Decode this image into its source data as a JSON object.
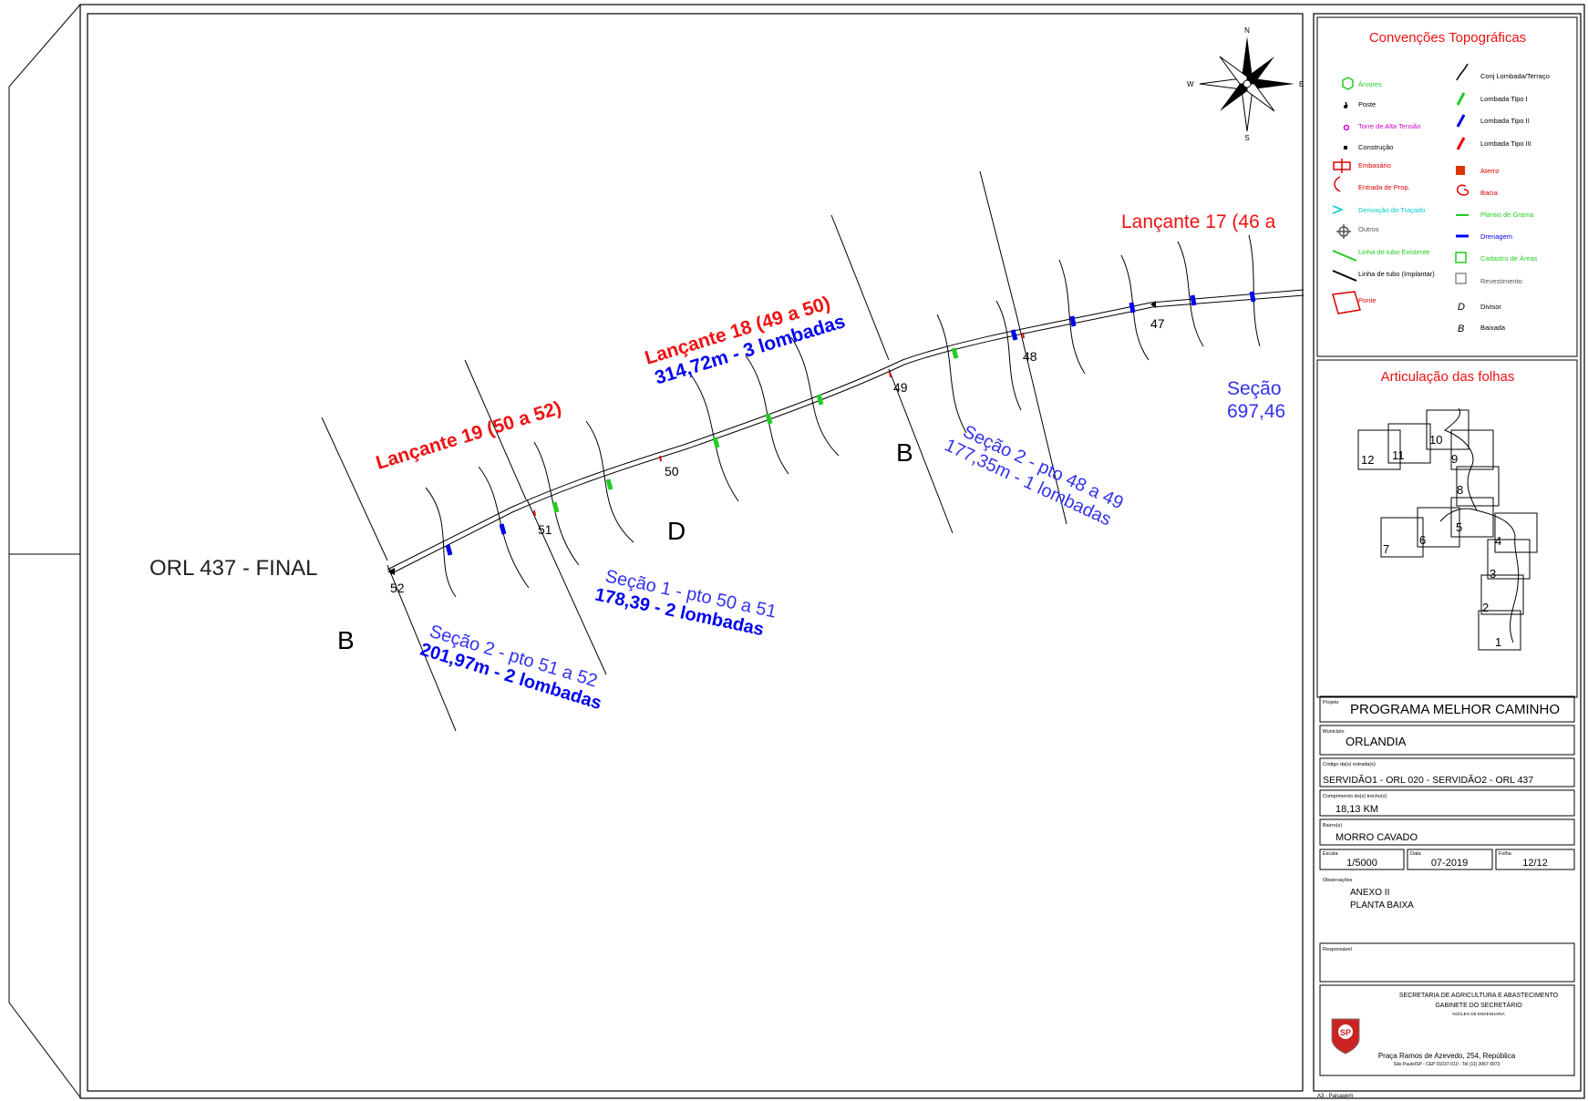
{
  "map": {
    "endpoint_label": "ORL 437 - FINAL",
    "points": [
      "47",
      "48",
      "49",
      "50",
      "51",
      "52"
    ],
    "segments": [
      {
        "title": "Lançante 17 (46 a"
      },
      {
        "title": "Lançante 18 (49 a 50)",
        "detail": "314,72m - 3 lombadas"
      },
      {
        "title": "Lançante 19 (50 a 52)"
      }
    ],
    "sections": [
      {
        "line1": "Seção 2 - pto 48 a 49",
        "line2": "177,35m - 1 lombadas"
      },
      {
        "line1": "Seção 1 - pto 50 a 51",
        "line2": "178,39 - 2 lombadas"
      },
      {
        "line1": "Seção 2 - pto 51 a 52",
        "line2": "201,97m - 2 lombadas"
      },
      {
        "line1": "Seção",
        "line2": "697,46"
      }
    ],
    "markers": {
      "b1": "B",
      "b2": "B",
      "d": "D"
    },
    "compass": {
      "n": "N",
      "s": "S",
      "e": "E",
      "w": "W"
    }
  },
  "legend": {
    "title": "Convenções Topográficas",
    "left": [
      {
        "label": "Árvores",
        "color": "#22cc22"
      },
      {
        "label": "Poste",
        "color": "#000000"
      },
      {
        "label": "Torre de Alta Tensão",
        "color": "#cc00cc"
      },
      {
        "label": "Construção",
        "color": "#000000"
      },
      {
        "label": "Embasário",
        "color": "#dd0000"
      },
      {
        "label": "Entrada de Prop.",
        "color": "#dd0000"
      },
      {
        "label": "Derivação do Traçado",
        "color": "#00cccc"
      },
      {
        "label": "Outros",
        "color": "#555555"
      },
      {
        "label": "Linha de tubo Existente",
        "color": "#22cc22"
      },
      {
        "label": "Linha de tubo (Implantar)",
        "color": "#000000"
      },
      {
        "label": "Ponte",
        "color": "#dd0000"
      }
    ],
    "right": [
      {
        "label": "Conj Lombada/Terraço",
        "color": "#000000"
      },
      {
        "label": "Lombada Tipo I",
        "color": "#22cc22"
      },
      {
        "label": "Lombada Tipo II",
        "color": "#0000ee"
      },
      {
        "label": "Lombada Tipo III",
        "color": "#ee0000"
      },
      {
        "label": "Aterro",
        "color": "#dd0000"
      },
      {
        "label": "Bacia",
        "color": "#dd0000"
      },
      {
        "label": "Plantio de Grama",
        "color": "#22cc22"
      },
      {
        "label": "Drenagem",
        "color": "#0000ee"
      },
      {
        "label": "Cadastro de Áreas",
        "color": "#22cc22"
      },
      {
        "label": "Revestimento",
        "color": "#555555"
      },
      {
        "label": "Divisor",
        "color": "#000000"
      },
      {
        "label": "Baixada",
        "color": "#000000"
      }
    ],
    "right_symbols": {
      "divisor": "D",
      "baixada": "B"
    }
  },
  "articulation": {
    "title": "Articulação das folhas",
    "sheets": [
      "1",
      "2",
      "3",
      "4",
      "5",
      "6",
      "7",
      "8",
      "9",
      "10",
      "11",
      "12"
    ]
  },
  "title_block": {
    "projeto_label": "Projeto",
    "projeto": "PROGRAMA MELHOR CAMINHO",
    "municipio_label": "Município",
    "municipio": "ORLANDIA",
    "codigo_label": "Código da(s) estrada(s)",
    "codigo": "SERVIDÃO1 - ORL 020 - SERVIDÃO2 - ORL 437",
    "comprimento_label": "Comprimento do(s) trecho(s)",
    "comprimento": "18,13 KM",
    "bairro_label": "Bairro(s)",
    "bairro": "MORRO CAVADO",
    "escala_label": "Escala",
    "escala": "1/5000",
    "data_label": "Data",
    "data": "07-2019",
    "folha_label": "Folha",
    "folha": "12/12",
    "obs_label": "Observações",
    "obs_line1": "ANEXO II",
    "obs_line2": "PLANTA BAIXA",
    "resp_label": "Responsável"
  },
  "agency": {
    "line1": "SECRETARIA DE AGRICULTURA E ABASTECIMENTO",
    "line2": "GABINETE DO SECRETÁRIO",
    "line3": "NÚCLEO DE ENGENHARIA",
    "seal": "SP",
    "address": "Praça Ramos de Azevedo, 254, República",
    "address2": "São Paulo/SP - CEP 01037-010 - Tel (11) 3067 0073"
  },
  "footer_note": "A3 - Paisagem"
}
